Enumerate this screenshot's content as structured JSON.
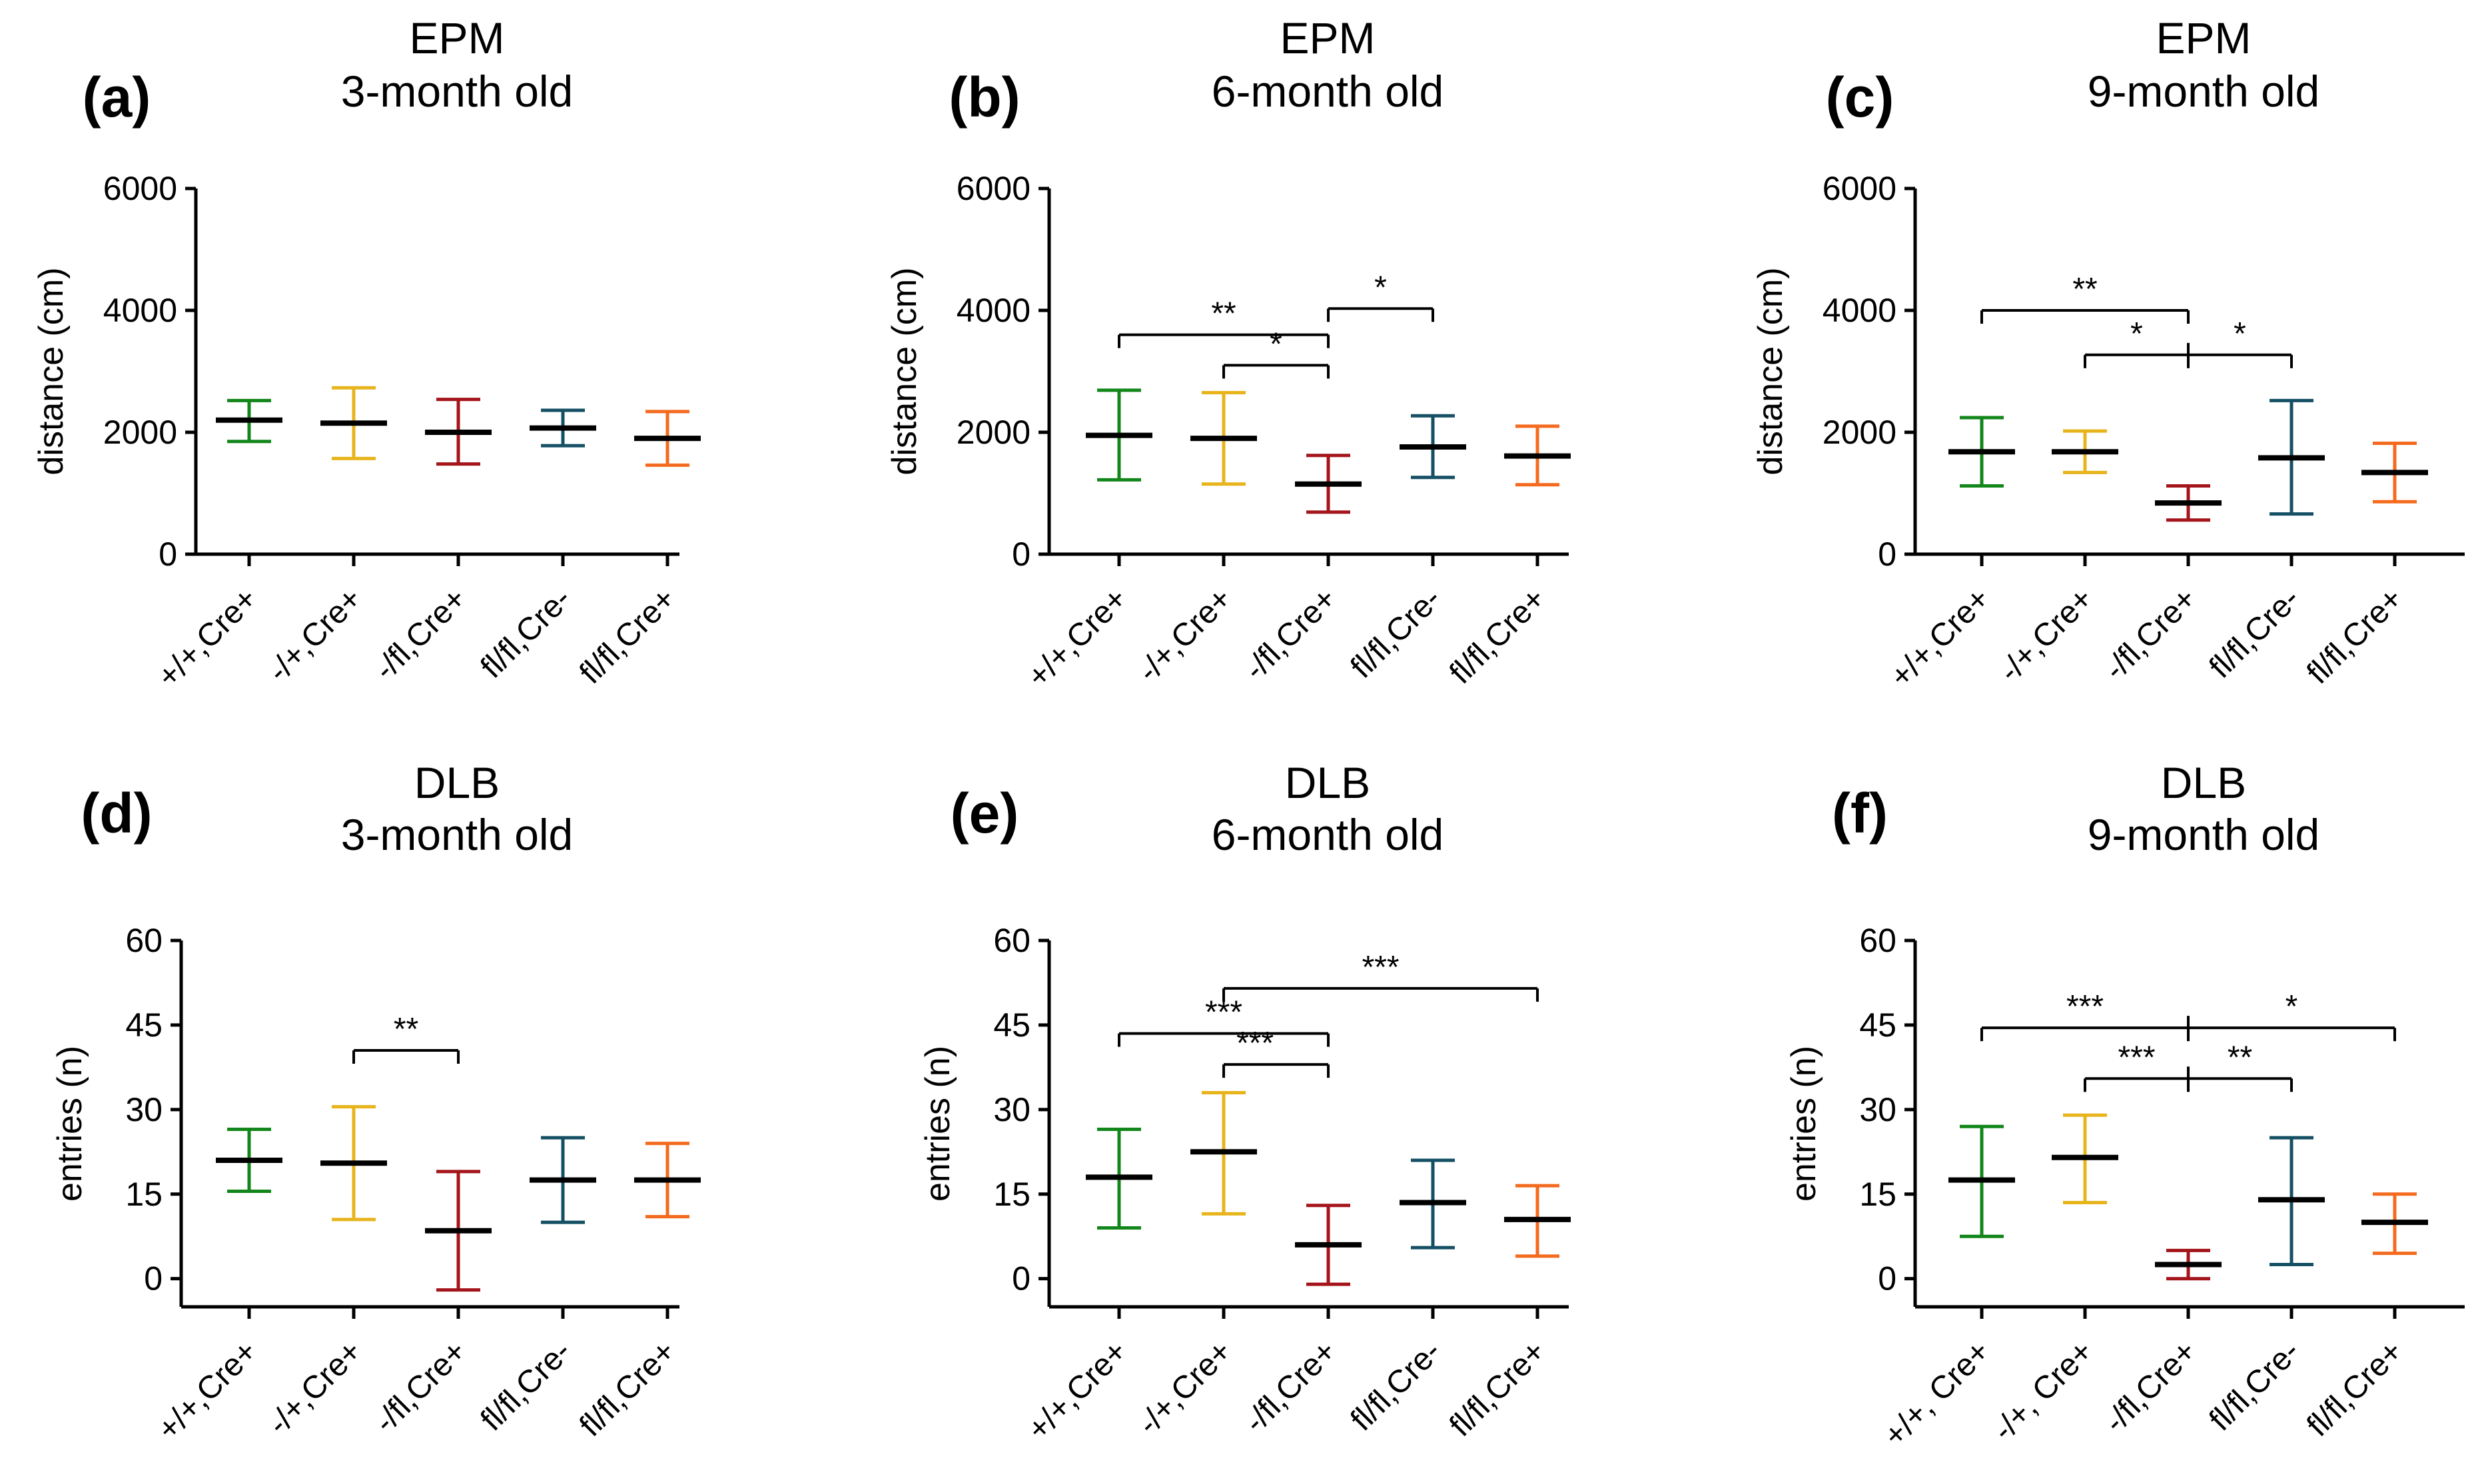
{
  "colors": {
    "+/+, Cre+": "#12861a",
    "-/+, Cre+": "#e8b41c",
    "-/fl, Cre+": "#a4151b",
    "fl/fl, Cre-": "#154f64",
    "fl/fl, Cre+": "#f46a1e",
    "axis": "#000000",
    "mean": "#000000"
  },
  "chart_data": [
    {
      "panel": "(a)",
      "type": "scatter",
      "title": [
        "EPM",
        "3-month old"
      ],
      "ylabel": "distance (cm)",
      "ylim": [
        0,
        6000
      ],
      "yticks": [
        0,
        2000,
        4000,
        6000
      ],
      "categories": [
        "+/+,Cre+",
        "-/+,Cre+",
        "-/fl,Cre+",
        "fl/fl,Cre-",
        "fl/fl,Cre+"
      ],
      "series": [
        {
          "group": "+/+, Cre+",
          "mean": 2200,
          "low": 1850,
          "high": 2520
        },
        {
          "group": "-/+, Cre+",
          "mean": 2150,
          "low": 1570,
          "high": 2730
        },
        {
          "group": "-/fl, Cre+",
          "mean": 2000,
          "low": 1480,
          "high": 2540
        },
        {
          "group": "fl/fl, Cre-",
          "mean": 2070,
          "low": 1780,
          "high": 2360
        },
        {
          "group": "fl/fl, Cre+",
          "mean": 1900,
          "low": 1460,
          "high": 2340
        }
      ],
      "annotations": []
    },
    {
      "panel": "(b)",
      "type": "scatter",
      "title": [
        "EPM",
        "6-month old"
      ],
      "ylabel": "distance (cm)",
      "ylim": [
        0,
        6000
      ],
      "yticks": [
        0,
        2000,
        4000,
        6000
      ],
      "categories": [
        "+/+,Cre+",
        "-/+,Cre+",
        "-/fl,Cre+",
        "fl/fl,Cre-",
        "fl/fl,Cre+"
      ],
      "series": [
        {
          "group": "+/+, Cre+",
          "mean": 1950,
          "low": 1220,
          "high": 2690
        },
        {
          "group": "-/+, Cre+",
          "mean": 1900,
          "low": 1150,
          "high": 2650
        },
        {
          "group": "-/fl, Cre+",
          "mean": 1150,
          "low": 690,
          "high": 1620
        },
        {
          "group": "fl/fl, Cre-",
          "mean": 1760,
          "low": 1260,
          "high": 2270
        },
        {
          "group": "fl/fl, Cre+",
          "mean": 1610,
          "low": 1140,
          "high": 2100
        }
      ],
      "annotations": [
        {
          "from": 0,
          "to": 2,
          "y": 3600,
          "label": "**",
          "star_at": 1
        },
        {
          "from": 1,
          "to": 2,
          "y": 3100,
          "label": "*",
          "star_at": 1.5
        },
        {
          "from": 2,
          "to": 3,
          "y": 4030,
          "label": "*",
          "star_at": 2.5
        }
      ]
    },
    {
      "panel": "(c)",
      "type": "scatter",
      "title": [
        "EPM",
        "9-month old"
      ],
      "ylabel": "distance (cm)",
      "ylim": [
        0,
        6000
      ],
      "yticks": [
        0,
        2000,
        4000,
        6000
      ],
      "categories": [
        "+/+,Cre+",
        "-/+,Cre+",
        "-/fl,Cre+",
        "fl/fl,Cre-",
        "fl/fl,Cre+"
      ],
      "series": [
        {
          "group": "+/+, Cre+",
          "mean": 1680,
          "low": 1120,
          "high": 2240
        },
        {
          "group": "-/+, Cre+",
          "mean": 1680,
          "low": 1340,
          "high": 2020
        },
        {
          "group": "-/fl, Cre+",
          "mean": 840,
          "low": 560,
          "high": 1120
        },
        {
          "group": "fl/fl, Cre-",
          "mean": 1580,
          "low": 660,
          "high": 2520
        },
        {
          "group": "fl/fl, Cre+",
          "mean": 1340,
          "low": 860,
          "high": 1820
        }
      ],
      "annotations": [
        {
          "from": 0,
          "to": 2,
          "y": 4000,
          "label": "**",
          "star_at": 1
        },
        {
          "from": 1,
          "to": 3,
          "y": 3270,
          "label": "*",
          "star_at": 1.5,
          "mid_tick": 2,
          "label2": "*",
          "star2_at": 2.5
        }
      ]
    },
    {
      "panel": "(d)",
      "type": "scatter",
      "title": [
        "DLB",
        "3-month old"
      ],
      "ylabel": "entries (n)",
      "ylim": [
        -5,
        60
      ],
      "yticks": [
        0,
        15,
        30,
        45,
        60
      ],
      "categories": [
        "+/+,Cre+",
        "-/+,Cre+",
        "-/fl,Cre+",
        "fl/fl,Cre-",
        "fl/fl,Cre+"
      ],
      "series": [
        {
          "group": "+/+, Cre+",
          "mean": 21,
          "low": 15.5,
          "high": 26.5
        },
        {
          "group": "-/+, Cre+",
          "mean": 20.5,
          "low": 10.5,
          "high": 30.5
        },
        {
          "group": "-/fl, Cre+",
          "mean": 8.5,
          "low": -2,
          "high": 19
        },
        {
          "group": "fl/fl, Cre-",
          "mean": 17.5,
          "low": 10,
          "high": 25
        },
        {
          "group": "fl/fl, Cre+",
          "mean": 17.5,
          "low": 11,
          "high": 24
        }
      ],
      "annotations": [
        {
          "from": 1,
          "to": 2,
          "y": 40.5,
          "label": "**",
          "star_at": 1.5
        }
      ]
    },
    {
      "panel": "(e)",
      "type": "scatter",
      "title": [
        "DLB",
        "6-month old"
      ],
      "ylabel": "entries (n)",
      "ylim": [
        -5,
        60
      ],
      "yticks": [
        0,
        15,
        30,
        45,
        60
      ],
      "categories": [
        "+/+,Cre+",
        "-/+,Cre+",
        "-/fl,Cre+",
        "fl/fl,Cre-",
        "fl/fl,Cre+"
      ],
      "series": [
        {
          "group": "+/+, Cre+",
          "mean": 18,
          "low": 9,
          "high": 26.5
        },
        {
          "group": "-/+, Cre+",
          "mean": 22.5,
          "low": 11.5,
          "high": 33
        },
        {
          "group": "-/fl, Cre+",
          "mean": 6,
          "low": -1,
          "high": 13
        },
        {
          "group": "fl/fl, Cre-",
          "mean": 13.5,
          "low": 5.5,
          "high": 21
        },
        {
          "group": "fl/fl, Cre+",
          "mean": 10.5,
          "low": 4,
          "high": 16.5
        }
      ],
      "annotations": [
        {
          "from": 0,
          "to": 2,
          "y": 43.5,
          "label": "***",
          "star_at": 1
        },
        {
          "from": 1,
          "to": 2,
          "y": 38,
          "label": "***",
          "star_at": 1.3
        },
        {
          "from": 1,
          "to": 4,
          "y": 51.5,
          "label": "***",
          "star_at": 2.5
        }
      ]
    },
    {
      "panel": "(f)",
      "type": "scatter",
      "title": [
        "DLB",
        "9-month old"
      ],
      "ylabel": "entries (n)",
      "ylim": [
        -5,
        60
      ],
      "yticks": [
        0,
        15,
        30,
        45,
        60
      ],
      "categories": [
        "+/+, Cre+",
        "-/+, Cre+",
        "-/fl,Cre+",
        "fl/fl,Cre-",
        "fl/fl,Cre+"
      ],
      "series": [
        {
          "group": "+/+, Cre+",
          "mean": 17.5,
          "low": 7.5,
          "high": 27
        },
        {
          "group": "-/+, Cre+",
          "mean": 21.5,
          "low": 13.5,
          "high": 29
        },
        {
          "group": "-/fl, Cre+",
          "mean": 2.5,
          "low": 0,
          "high": 5
        },
        {
          "group": "fl/fl, Cre-",
          "mean": 14,
          "low": 2.5,
          "high": 25
        },
        {
          "group": "fl/fl, Cre+",
          "mean": 10,
          "low": 4.5,
          "high": 15
        }
      ],
      "annotations": [
        {
          "from": 0,
          "to": 4,
          "y": 44.5,
          "label": "***",
          "star_at": 1,
          "mid_tick": 2,
          "label2": "*",
          "star2_at": 3
        },
        {
          "from": 1,
          "to": 3,
          "y": 35.5,
          "label": "***",
          "star_at": 1.5,
          "mid_tick": 2,
          "label2": "**",
          "star2_at": 2.5
        }
      ]
    }
  ]
}
